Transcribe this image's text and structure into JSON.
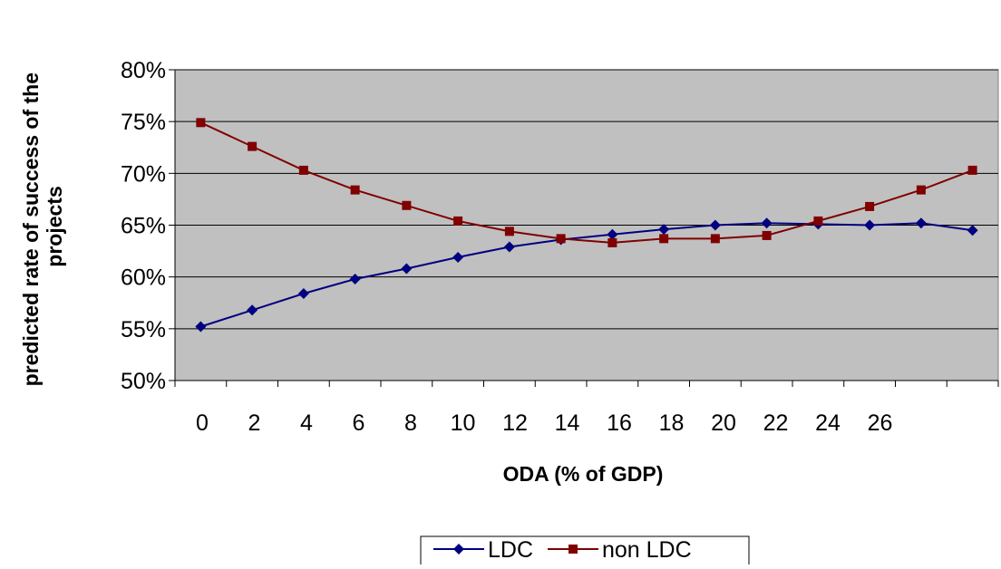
{
  "chart_data": {
    "type": "line",
    "xlabel": "ODA (% of GDP)",
    "ylabel_lines": [
      "predicted rate of success of the",
      "projects"
    ],
    "ylim": [
      0.5,
      0.8
    ],
    "y_ticks": [
      "50%",
      "55%",
      "60%",
      "65%",
      "70%",
      "75%",
      "80%"
    ],
    "x_tick_labels": [
      "0",
      "2",
      "4",
      "6",
      "8",
      "10",
      "12",
      "14",
      "16",
      "18",
      "20",
      "22",
      "24",
      "26",
      "",
      ""
    ],
    "grid": "horizontal",
    "plot_background": "#c0c0c0",
    "legend_position": "bottom",
    "series": [
      {
        "name": "LDC",
        "color": "#000080",
        "marker": "diamond",
        "values": [
          0.552,
          0.568,
          0.584,
          0.598,
          0.608,
          0.619,
          0.629,
          0.636,
          0.641,
          0.646,
          0.65,
          0.652,
          0.651,
          0.65,
          0.652,
          0.645
        ]
      },
      {
        "name": "non LDC",
        "color": "#800000",
        "marker": "square",
        "values": [
          0.749,
          0.726,
          0.703,
          0.684,
          0.669,
          0.654,
          0.644,
          0.637,
          0.633,
          0.637,
          0.637,
          0.64,
          0.654,
          0.668,
          0.684,
          0.703
        ]
      }
    ]
  }
}
